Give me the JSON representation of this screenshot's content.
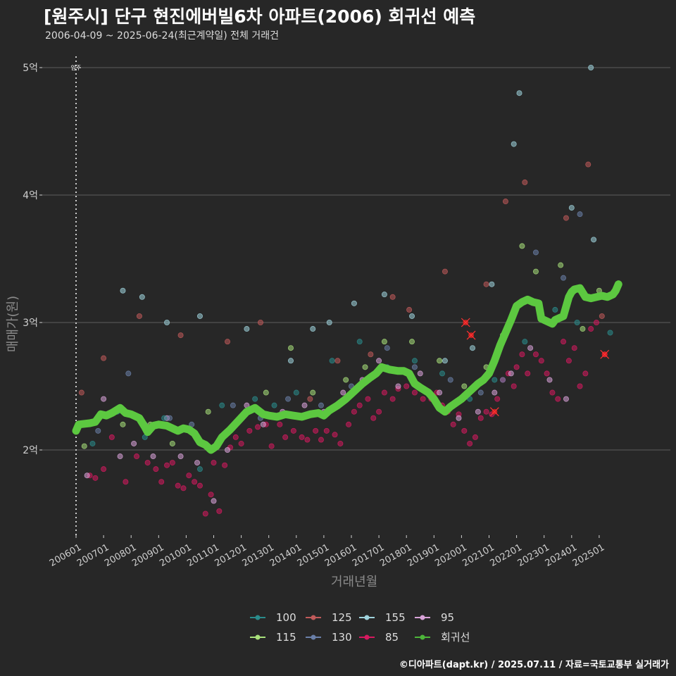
{
  "header": {
    "title": "[원주시] 단구 현진에버빌6차 아파트(2006) 회귀선 예측",
    "subtitle": "2006-04-09 ~ 2025-06-24(최근계약일) 전체 거래건"
  },
  "caption": "©디아파트(dapt.kr) / 2025.07.11 / 자료=국토교통부 실거래가",
  "chart_data": {
    "type": "scatter",
    "title": "[원주시] 단구 현진에버빌6차 아파트(2006) 회귀선 예측",
    "xlabel": "거래년월",
    "ylabel": "매매가(원)",
    "xlim": [
      2006.0,
      2025.8
    ],
    "ylim": [
      1.3,
      5.15
    ],
    "y_ticks": [
      {
        "value": 2,
        "label": "2억"
      },
      {
        "value": 3,
        "label": "3억"
      },
      {
        "value": 4,
        "label": "4억"
      },
      {
        "value": 5,
        "label": "5억"
      }
    ],
    "x_ticks": [
      {
        "value": 2006.0,
        "label": "200601"
      },
      {
        "value": 2007.0,
        "label": "200701"
      },
      {
        "value": 2008.0,
        "label": "200801"
      },
      {
        "value": 2009.0,
        "label": "200901"
      },
      {
        "value": 2010.0,
        "label": "201001"
      },
      {
        "value": 2011.0,
        "label": "201101"
      },
      {
        "value": 2012.0,
        "label": "201201"
      },
      {
        "value": 2013.0,
        "label": "201301"
      },
      {
        "value": 2014.0,
        "label": "201401"
      },
      {
        "value": 2015.0,
        "label": "201501"
      },
      {
        "value": 2016.0,
        "label": "201601"
      },
      {
        "value": 2017.0,
        "label": "201701"
      },
      {
        "value": 2018.0,
        "label": "201801"
      },
      {
        "value": 2019.0,
        "label": "201901"
      },
      {
        "value": 2020.0,
        "label": "202001"
      },
      {
        "value": 2021.0,
        "label": "202101"
      },
      {
        "value": 2022.0,
        "label": "202201"
      },
      {
        "value": 2023.0,
        "label": "202301"
      },
      {
        "value": 2024.0,
        "label": "202401"
      },
      {
        "value": 2025.0,
        "label": "202501"
      }
    ],
    "annotation": {
      "label": "입주",
      "x": 2006.0,
      "y": 5.0
    },
    "legend": {
      "position": "bottom",
      "items": [
        {
          "name": "100",
          "color": "#2a8c8c"
        },
        {
          "name": "125",
          "color": "#c05a5a"
        },
        {
          "name": "155",
          "color": "#9fd3dd"
        },
        {
          "name": "95",
          "color": "#d9a3d9"
        },
        {
          "name": "115",
          "color": "#a8e07a"
        },
        {
          "name": "130",
          "color": "#6a7fa8"
        },
        {
          "name": "85",
          "color": "#d6195f"
        },
        {
          "name": "회귀선",
          "color": "#4db53a"
        }
      ]
    },
    "regression": {
      "name": "회귀선",
      "color": "#5cc840",
      "x": [
        2006.0,
        2006.1,
        2006.5,
        2006.7,
        2006.9,
        2007.1,
        2007.3,
        2007.6,
        2007.8,
        2008.0,
        2008.3,
        2008.5,
        2008.6,
        2008.8,
        2009.0,
        2009.3,
        2009.5,
        2009.7,
        2009.9,
        2010.1,
        2010.3,
        2010.5,
        2010.7,
        2010.9,
        2011.1,
        2011.3,
        2011.6,
        2011.9,
        2012.2,
        2012.5,
        2012.8,
        2013.0,
        2013.3,
        2013.6,
        2013.9,
        2014.2,
        2014.5,
        2014.8,
        2015.0,
        2015.2,
        2015.5,
        2015.8,
        2016.1,
        2016.4,
        2016.7,
        2016.9,
        2017.1,
        2017.4,
        2017.7,
        2017.9,
        2018.1,
        2018.3,
        2018.5,
        2018.8,
        2019.0,
        2019.2,
        2019.4,
        2019.6,
        2019.8,
        2020.0,
        2020.2,
        2020.4,
        2020.6,
        2020.8,
        2021.0,
        2021.2,
        2021.4,
        2021.6,
        2021.8,
        2022.0,
        2022.2,
        2022.4,
        2022.6,
        2022.8,
        2022.9,
        2023.1,
        2023.3,
        2023.4,
        2023.5,
        2023.7,
        2023.9,
        2024.0,
        2024.1,
        2024.3,
        2024.5,
        2024.7,
        2024.9,
        2025.1,
        2025.3,
        2025.5,
        2025.6,
        2025.7
      ],
      "y": [
        2.15,
        2.2,
        2.21,
        2.22,
        2.28,
        2.27,
        2.29,
        2.33,
        2.29,
        2.28,
        2.25,
        2.18,
        2.14,
        2.19,
        2.2,
        2.19,
        2.17,
        2.15,
        2.17,
        2.16,
        2.13,
        2.06,
        2.04,
        2.0,
        2.03,
        2.1,
        2.16,
        2.23,
        2.3,
        2.33,
        2.28,
        2.27,
        2.26,
        2.28,
        2.27,
        2.26,
        2.28,
        2.29,
        2.27,
        2.31,
        2.35,
        2.4,
        2.46,
        2.52,
        2.57,
        2.6,
        2.65,
        2.63,
        2.62,
        2.62,
        2.6,
        2.52,
        2.49,
        2.45,
        2.4,
        2.33,
        2.3,
        2.34,
        2.37,
        2.4,
        2.44,
        2.48,
        2.52,
        2.55,
        2.6,
        2.7,
        2.82,
        2.92,
        3.02,
        3.13,
        3.16,
        3.18,
        3.16,
        3.15,
        3.03,
        3.01,
        2.99,
        3.02,
        3.03,
        3.05,
        3.2,
        3.24,
        3.26,
        3.27,
        3.2,
        3.19,
        3.2,
        3.21,
        3.2,
        3.22,
        3.25,
        3.3
      ]
    },
    "series": [
      {
        "name": "85",
        "color": "#d6195f",
        "points": [
          [
            2006.5,
            1.8
          ],
          [
            2006.7,
            1.78
          ],
          [
            2007.0,
            1.85
          ],
          [
            2007.3,
            2.1
          ],
          [
            2007.8,
            1.75
          ],
          [
            2008.2,
            1.95
          ],
          [
            2008.6,
            1.9
          ],
          [
            2008.9,
            1.85
          ],
          [
            2009.1,
            1.75
          ],
          [
            2009.3,
            1.88
          ],
          [
            2009.5,
            1.9
          ],
          [
            2009.7,
            1.72
          ],
          [
            2009.9,
            1.7
          ],
          [
            2010.1,
            1.8
          ],
          [
            2010.3,
            1.75
          ],
          [
            2010.5,
            1.72
          ],
          [
            2010.7,
            1.5
          ],
          [
            2010.9,
            1.65
          ],
          [
            2011.0,
            1.9
          ],
          [
            2011.2,
            1.52
          ],
          [
            2011.4,
            1.88
          ],
          [
            2011.6,
            2.02
          ],
          [
            2011.8,
            2.1
          ],
          [
            2012.0,
            2.05
          ],
          [
            2012.3,
            2.15
          ],
          [
            2012.6,
            2.18
          ],
          [
            2012.9,
            2.2
          ],
          [
            2013.1,
            2.03
          ],
          [
            2013.4,
            2.2
          ],
          [
            2013.6,
            2.1
          ],
          [
            2013.9,
            2.15
          ],
          [
            2014.2,
            2.1
          ],
          [
            2014.4,
            2.08
          ],
          [
            2014.7,
            2.15
          ],
          [
            2014.9,
            2.08
          ],
          [
            2015.1,
            2.15
          ],
          [
            2015.4,
            2.12
          ],
          [
            2015.6,
            2.05
          ],
          [
            2015.9,
            2.2
          ],
          [
            2016.1,
            2.3
          ],
          [
            2016.3,
            2.35
          ],
          [
            2016.6,
            2.4
          ],
          [
            2016.8,
            2.25
          ],
          [
            2017.0,
            2.3
          ],
          [
            2017.2,
            2.45
          ],
          [
            2017.5,
            2.4
          ],
          [
            2017.7,
            2.48
          ],
          [
            2018.0,
            2.5
          ],
          [
            2018.3,
            2.45
          ],
          [
            2018.6,
            2.4
          ],
          [
            2018.9,
            2.4
          ],
          [
            2019.1,
            2.45
          ],
          [
            2019.3,
            2.35
          ],
          [
            2019.5,
            2.3
          ],
          [
            2019.7,
            2.2
          ],
          [
            2019.9,
            2.28
          ],
          [
            2020.1,
            2.15
          ],
          [
            2020.3,
            2.05
          ],
          [
            2020.5,
            2.1
          ],
          [
            2020.7,
            2.25
          ],
          [
            2020.9,
            2.3
          ],
          [
            2021.1,
            2.28
          ],
          [
            2021.3,
            2.4
          ],
          [
            2021.5,
            2.55
          ],
          [
            2021.7,
            2.6
          ],
          [
            2021.9,
            2.5
          ],
          [
            2022.0,
            2.65
          ],
          [
            2022.2,
            2.75
          ],
          [
            2022.4,
            2.6
          ],
          [
            2022.7,
            2.75
          ],
          [
            2022.9,
            2.7
          ],
          [
            2023.1,
            2.6
          ],
          [
            2023.3,
            2.45
          ],
          [
            2023.5,
            2.4
          ],
          [
            2023.7,
            2.85
          ],
          [
            2023.9,
            2.7
          ],
          [
            2024.1,
            2.8
          ],
          [
            2024.3,
            2.5
          ],
          [
            2024.5,
            2.6
          ],
          [
            2024.7,
            2.95
          ],
          [
            2024.9,
            3.0
          ],
          [
            2025.2,
            2.75
          ]
        ]
      },
      {
        "name": "95",
        "color": "#d9a3d9",
        "points": [
          [
            2006.4,
            1.8
          ],
          [
            2007.0,
            2.4
          ],
          [
            2007.6,
            1.95
          ],
          [
            2008.1,
            2.05
          ],
          [
            2008.8,
            1.95
          ],
          [
            2009.3,
            2.25
          ],
          [
            2009.8,
            1.95
          ],
          [
            2010.4,
            1.9
          ],
          [
            2011.0,
            1.6
          ],
          [
            2011.5,
            2.0
          ],
          [
            2012.2,
            2.35
          ],
          [
            2012.8,
            2.2
          ],
          [
            2013.5,
            2.3
          ],
          [
            2014.3,
            2.35
          ],
          [
            2015.0,
            2.3
          ],
          [
            2015.7,
            2.45
          ],
          [
            2016.4,
            2.55
          ],
          [
            2017.0,
            2.7
          ],
          [
            2017.7,
            2.5
          ],
          [
            2018.5,
            2.6
          ],
          [
            2019.2,
            2.45
          ],
          [
            2019.9,
            2.25
          ],
          [
            2020.6,
            2.3
          ],
          [
            2021.2,
            2.45
          ],
          [
            2021.8,
            2.6
          ],
          [
            2022.5,
            2.8
          ],
          [
            2023.2,
            2.55
          ],
          [
            2023.8,
            2.4
          ]
        ]
      },
      {
        "name": "100",
        "color": "#2a8c8c",
        "points": [
          [
            2006.6,
            2.05
          ],
          [
            2007.5,
            2.3
          ],
          [
            2008.5,
            2.1
          ],
          [
            2009.2,
            2.25
          ],
          [
            2010.5,
            1.85
          ],
          [
            2011.3,
            2.35
          ],
          [
            2012.5,
            2.4
          ],
          [
            2013.2,
            2.35
          ],
          [
            2014.0,
            2.45
          ],
          [
            2015.3,
            2.7
          ],
          [
            2016.3,
            2.85
          ],
          [
            2017.3,
            2.65
          ],
          [
            2018.3,
            2.7
          ],
          [
            2019.3,
            2.6
          ],
          [
            2020.3,
            2.4
          ],
          [
            2021.2,
            2.55
          ],
          [
            2022.3,
            2.85
          ],
          [
            2023.4,
            3.1
          ],
          [
            2024.2,
            3.0
          ],
          [
            2025.4,
            2.92
          ]
        ]
      },
      {
        "name": "115",
        "color": "#a8e07a",
        "points": [
          [
            2006.3,
            2.03
          ],
          [
            2007.7,
            2.2
          ],
          [
            2008.7,
            2.2
          ],
          [
            2009.5,
            2.05
          ],
          [
            2010.8,
            2.3
          ],
          [
            2012.0,
            2.25
          ],
          [
            2012.9,
            2.45
          ],
          [
            2013.8,
            2.8
          ],
          [
            2014.6,
            2.45
          ],
          [
            2015.8,
            2.55
          ],
          [
            2016.5,
            2.65
          ],
          [
            2017.2,
            2.85
          ],
          [
            2018.2,
            2.85
          ],
          [
            2019.2,
            2.7
          ],
          [
            2020.1,
            2.5
          ],
          [
            2020.9,
            2.65
          ],
          [
            2021.5,
            2.9
          ],
          [
            2022.2,
            3.6
          ],
          [
            2022.7,
            3.4
          ],
          [
            2023.6,
            3.45
          ],
          [
            2024.4,
            2.95
          ],
          [
            2025.0,
            3.25
          ]
        ]
      },
      {
        "name": "125",
        "color": "#c05a5a",
        "points": [
          [
            2006.2,
            2.45
          ],
          [
            2007.0,
            2.72
          ],
          [
            2008.3,
            3.05
          ],
          [
            2009.8,
            2.9
          ],
          [
            2011.5,
            2.85
          ],
          [
            2012.7,
            3.0
          ],
          [
            2014.5,
            2.4
          ],
          [
            2015.5,
            2.7
          ],
          [
            2016.7,
            2.75
          ],
          [
            2017.5,
            3.2
          ],
          [
            2018.1,
            3.1
          ],
          [
            2019.4,
            3.4
          ],
          [
            2020.9,
            3.3
          ],
          [
            2021.6,
            3.95
          ],
          [
            2022.3,
            4.1
          ],
          [
            2023.8,
            3.82
          ],
          [
            2024.6,
            4.24
          ],
          [
            2025.1,
            3.05
          ]
        ]
      },
      {
        "name": "130",
        "color": "#6a7fa8",
        "points": [
          [
            2006.8,
            2.15
          ],
          [
            2007.9,
            2.6
          ],
          [
            2008.5,
            2.2
          ],
          [
            2009.4,
            2.25
          ],
          [
            2010.2,
            2.2
          ],
          [
            2011.7,
            2.35
          ],
          [
            2012.7,
            2.25
          ],
          [
            2013.7,
            2.4
          ],
          [
            2014.9,
            2.35
          ],
          [
            2016.0,
            2.5
          ],
          [
            2017.3,
            2.8
          ],
          [
            2018.3,
            2.65
          ],
          [
            2019.6,
            2.55
          ],
          [
            2020.7,
            2.45
          ],
          [
            2021.5,
            2.55
          ],
          [
            2022.7,
            3.55
          ],
          [
            2023.7,
            3.35
          ],
          [
            2024.3,
            3.85
          ]
        ]
      },
      {
        "name": "155",
        "color": "#9fd3dd",
        "points": [
          [
            2007.7,
            3.25
          ],
          [
            2008.4,
            3.2
          ],
          [
            2009.3,
            3.0
          ],
          [
            2010.5,
            3.05
          ],
          [
            2012.2,
            2.95
          ],
          [
            2013.8,
            2.7
          ],
          [
            2014.6,
            2.95
          ],
          [
            2015.2,
            3.0
          ],
          [
            2016.1,
            3.15
          ],
          [
            2017.2,
            3.22
          ],
          [
            2018.2,
            3.05
          ],
          [
            2019.4,
            2.7
          ],
          [
            2020.4,
            2.8
          ],
          [
            2021.1,
            3.3
          ],
          [
            2021.9,
            4.4
          ],
          [
            2022.1,
            4.8
          ],
          [
            2024.0,
            3.9
          ],
          [
            2024.7,
            5.0
          ],
          [
            2024.8,
            3.65
          ]
        ]
      }
    ],
    "highlighted_points": [
      [
        2020.15,
        3.0
      ],
      [
        2020.35,
        2.9
      ],
      [
        2021.2,
        2.3
      ],
      [
        2025.2,
        2.75
      ]
    ]
  },
  "annot_label": "입주"
}
